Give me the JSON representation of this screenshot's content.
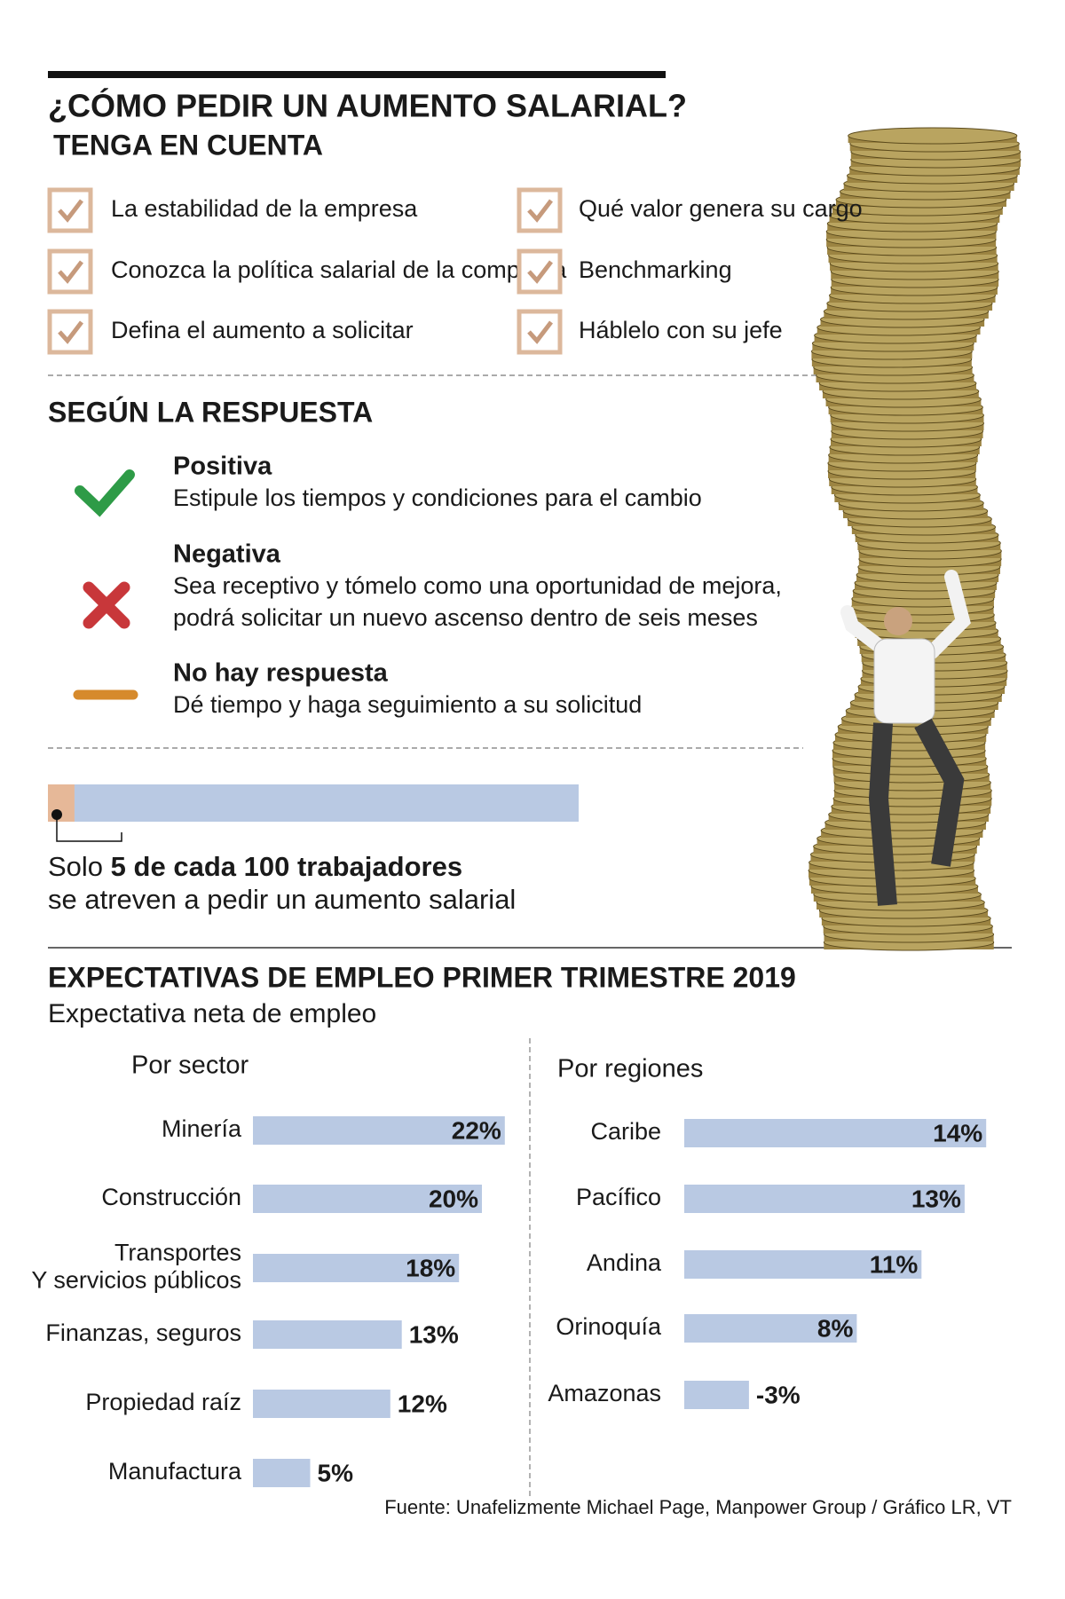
{
  "header": {
    "title": "¿CÓMO PEDIR UN AUMENTO SALARIAL?",
    "subtitle": "TENGA EN CUENTA"
  },
  "checklist": {
    "items": [
      "La estabilidad de la empresa",
      "Conozca la política salarial de la compañía",
      "Defina el aumento a solicitar",
      "Qué valor genera su cargo",
      "Benchmarking",
      "Háblelo con su jefe"
    ]
  },
  "responses": {
    "title": "SEGÚN LA RESPUESTA",
    "items": [
      {
        "label": "Positiva",
        "text": [
          "Estipule los tiempos y condiciones para el cambio"
        ]
      },
      {
        "label": "Negativa",
        "text": [
          "Sea receptivo y tómelo como una oportunidad de mejora,",
          "podrá solicitar un nuevo ascenso dentro de seis meses"
        ]
      },
      {
        "label": "No hay respuesta",
        "text": [
          "Dé tiempo y haga seguimiento a su solicitud"
        ]
      }
    ]
  },
  "stat": {
    "lead": "Solo",
    "count": 5,
    "connector": "de cada",
    "total": 100,
    "noun": "trabajadores",
    "rest": "se atreven a pedir un aumento salarial"
  },
  "section": {
    "title": "EXPECTATIVAS DE EMPLEO PRIMER TRIMESTRE 2019",
    "subtitle": "Expectativa neta de empleo"
  },
  "chart_data": [
    {
      "type": "bar",
      "orientation": "horizontal",
      "title": "Por sector",
      "categories": [
        "Minería",
        "Construcción",
        "Transportes\nY servicios públicos",
        "Finanzas, seguros",
        "Propiedad raíz",
        "Manufactura"
      ],
      "values": [
        22,
        20,
        18,
        13,
        12,
        5
      ],
      "value_labels": [
        "22%",
        "20%",
        "18%",
        "13%",
        "12%",
        "5%"
      ],
      "color": "#b9c9e3"
    },
    {
      "type": "bar",
      "orientation": "horizontal",
      "title": "Por regiones",
      "categories": [
        "Caribe",
        "Pacífico",
        "Andina",
        "Orinoquía",
        "Amazonas"
      ],
      "values": [
        14,
        13,
        11,
        8,
        -3
      ],
      "value_labels": [
        "14%",
        "13%",
        "11%",
        "8%",
        "-3%"
      ],
      "color": "#b9c9e3"
    }
  ],
  "source": "Fuente: Unafelizmente Michael Page, Manpower Group / Gráfico LR, VT"
}
